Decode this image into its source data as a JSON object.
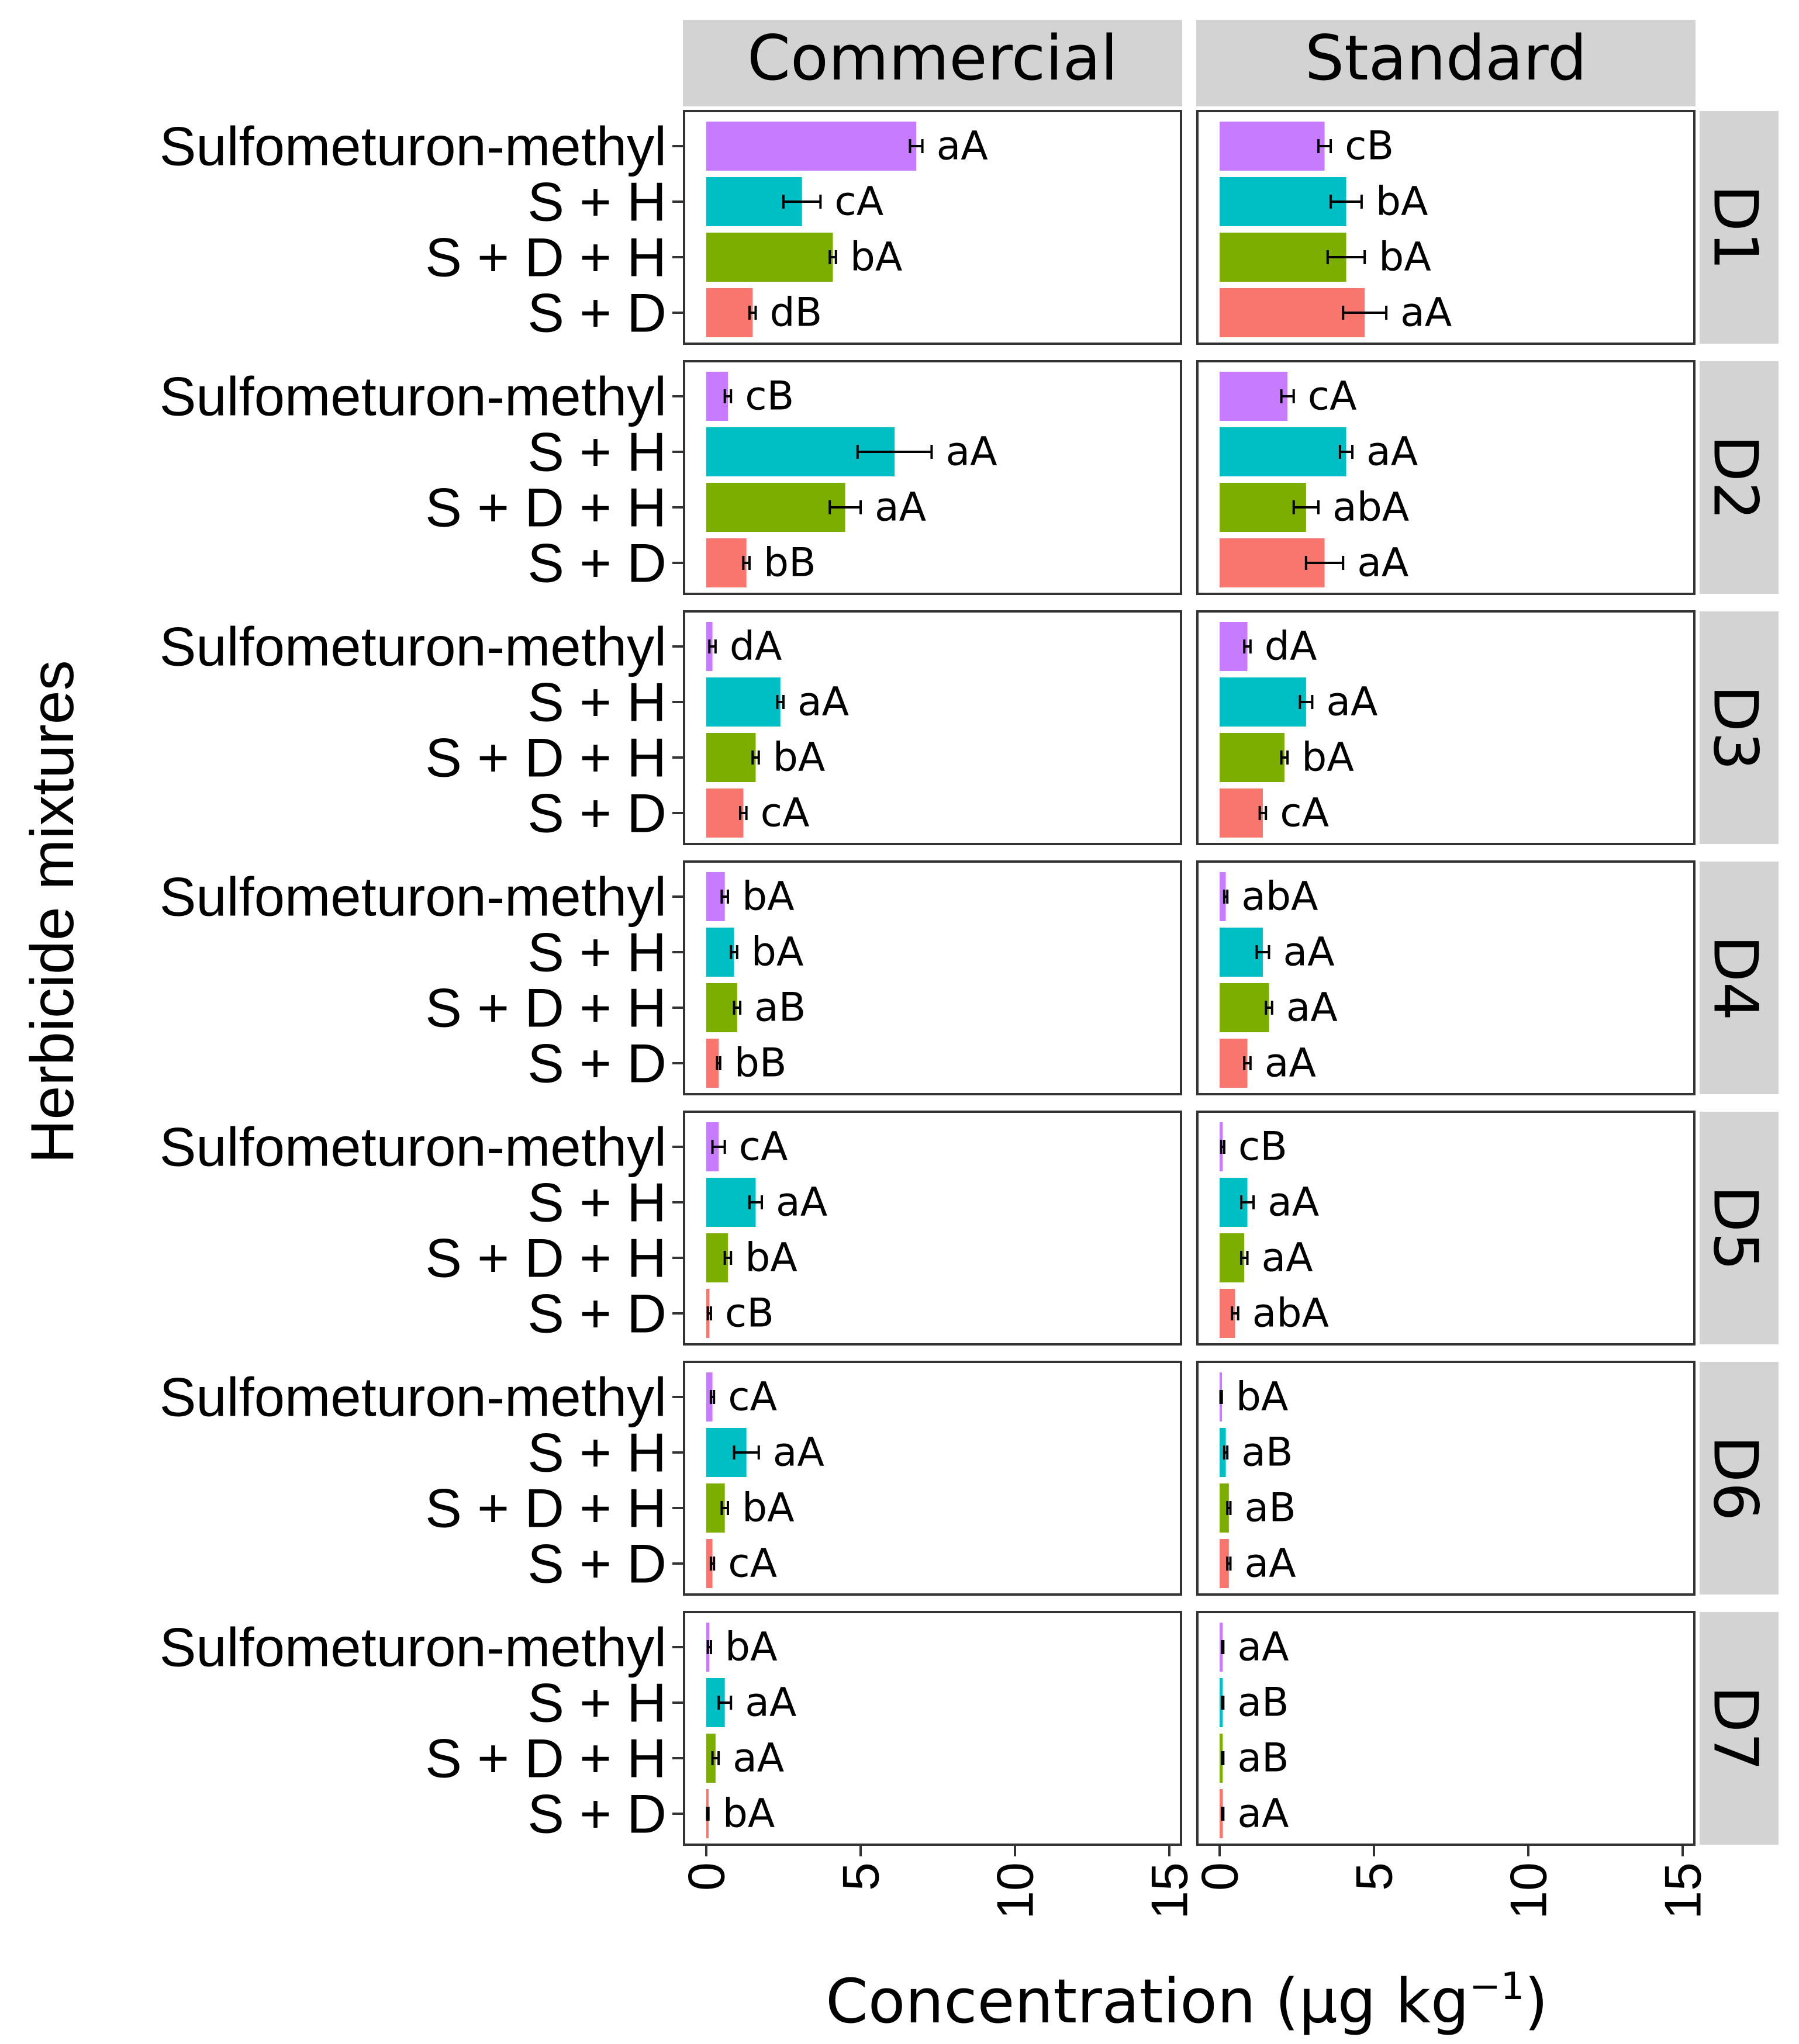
{
  "chart_data": {
    "type": "bar",
    "orientation": "horizontal",
    "xlabel": "Herbicide mixtures",
    "ylabel": "Concentration (µg kg⁻¹)",
    "ylabel_main": "Concentration (µg kg",
    "ylabel_sup": "−1",
    "ylabel_close": ")",
    "ylim": [
      0,
      15
    ],
    "ticks": [
      "0",
      "5",
      "10",
      "15"
    ],
    "tick_values": [
      0,
      5,
      10,
      15
    ],
    "grid": false,
    "legend": "none",
    "columns": [
      "Commercial",
      "Standard"
    ],
    "categories": [
      "Sulfometuron-methyl",
      "S + H",
      "S + D + H",
      "S + D"
    ],
    "colors": {
      "Sulfometuron-methyl": "#C77CFF",
      "S + H": "#00BFC4",
      "S + D + H": "#7CAE00",
      "S + D": "#F8766D",
      "strip": "#D3D3D3",
      "axis": "#333333",
      "text": "#000000"
    },
    "panels": [
      {
        "day": "D1",
        "Commercial": {
          "values": [
            6.8,
            3.1,
            4.1,
            1.5
          ],
          "errors": [
            0.2,
            0.6,
            0.1,
            0.1
          ],
          "letters": [
            "aA",
            "cA",
            "bA",
            "dB"
          ]
        },
        "Standard": {
          "values": [
            3.4,
            4.1,
            4.1,
            4.7
          ],
          "errors": [
            0.2,
            0.5,
            0.6,
            0.7
          ],
          "letters": [
            "cB",
            "bA",
            "bA",
            "aA"
          ]
        }
      },
      {
        "day": "D2",
        "Commercial": {
          "values": [
            0.7,
            6.1,
            4.5,
            1.3
          ],
          "errors": [
            0.1,
            1.2,
            0.5,
            0.1
          ],
          "letters": [
            "cB",
            "aA",
            "aA",
            "bB"
          ]
        },
        "Standard": {
          "values": [
            2.2,
            4.1,
            2.8,
            3.4
          ],
          "errors": [
            0.2,
            0.2,
            0.4,
            0.6
          ],
          "letters": [
            "cA",
            "aA",
            "abA",
            "aA"
          ]
        }
      },
      {
        "day": "D3",
        "Commercial": {
          "values": [
            0.2,
            2.4,
            1.6,
            1.2
          ],
          "errors": [
            0.1,
            0.1,
            0.1,
            0.1
          ],
          "letters": [
            "dA",
            "aA",
            "bA",
            "cA"
          ]
        },
        "Standard": {
          "values": [
            0.9,
            2.8,
            2.1,
            1.4
          ],
          "errors": [
            0.1,
            0.2,
            0.1,
            0.1
          ],
          "letters": [
            "dA",
            "aA",
            "bA",
            "cA"
          ]
        }
      },
      {
        "day": "D4",
        "Commercial": {
          "values": [
            0.6,
            0.9,
            1.0,
            0.4
          ],
          "errors": [
            0.1,
            0.1,
            0.1,
            0.05
          ],
          "letters": [
            "bA",
            "bA",
            "aB",
            "bB"
          ]
        },
        "Standard": {
          "values": [
            0.2,
            1.4,
            1.6,
            0.9
          ],
          "errors": [
            0.05,
            0.2,
            0.1,
            0.1
          ],
          "letters": [
            "abA",
            "aA",
            "aA",
            "aA"
          ]
        }
      },
      {
        "day": "D5",
        "Commercial": {
          "values": [
            0.4,
            1.6,
            0.7,
            0.1
          ],
          "errors": [
            0.2,
            0.2,
            0.1,
            0.05
          ],
          "letters": [
            "cA",
            "aA",
            "bA",
            "cB"
          ]
        },
        "Standard": {
          "values": [
            0.1,
            0.9,
            0.8,
            0.5
          ],
          "errors": [
            0.05,
            0.2,
            0.1,
            0.1
          ],
          "letters": [
            "cB",
            "aA",
            "aA",
            "abA"
          ]
        }
      },
      {
        "day": "D6",
        "Commercial": {
          "values": [
            0.2,
            1.3,
            0.6,
            0.2
          ],
          "errors": [
            0.05,
            0.4,
            0.1,
            0.05
          ],
          "letters": [
            "cA",
            "aA",
            "bA",
            "cA"
          ]
        },
        "Standard": {
          "values": [
            0.05,
            0.2,
            0.3,
            0.3
          ],
          "errors": [
            0.02,
            0.05,
            0.05,
            0.05
          ],
          "letters": [
            "bA",
            "aB",
            "aB",
            "aA"
          ]
        }
      },
      {
        "day": "D7",
        "Commercial": {
          "values": [
            0.1,
            0.6,
            0.3,
            0.05
          ],
          "errors": [
            0.05,
            0.2,
            0.1,
            0.02
          ],
          "letters": [
            "bA",
            "aA",
            "aA",
            "bA"
          ]
        },
        "Standard": {
          "values": [
            0.1,
            0.1,
            0.1,
            0.1
          ],
          "errors": [
            0.02,
            0.02,
            0.02,
            0.02
          ],
          "letters": [
            "aA",
            "aB",
            "aB",
            "aA"
          ]
        }
      }
    ]
  }
}
